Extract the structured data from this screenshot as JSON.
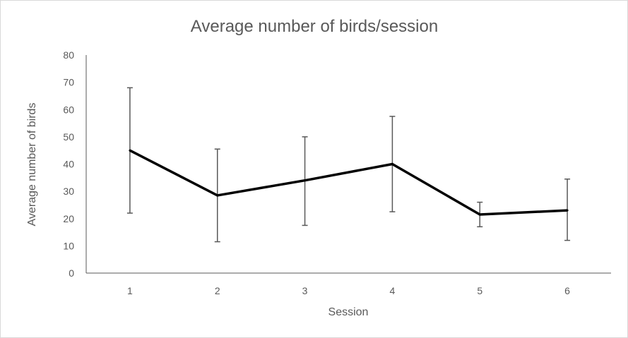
{
  "chart_data": {
    "type": "line",
    "title": "Average number of birds/session",
    "xlabel": "Session",
    "ylabel": "Average number of birds",
    "categories": [
      "1",
      "2",
      "3",
      "4",
      "5",
      "6"
    ],
    "y_ticks": [
      "0",
      "10",
      "20",
      "30",
      "40",
      "50",
      "60",
      "70",
      "80"
    ],
    "ylim": [
      0,
      80
    ],
    "grid": false,
    "legend": "none",
    "series": [
      {
        "values": [
          45,
          28.5,
          34,
          40,
          21.5,
          23
        ],
        "error_low": [
          22,
          11.5,
          17.5,
          22.5,
          17,
          12
        ],
        "error_high": [
          68,
          45.5,
          50,
          57.5,
          26,
          34.5
        ],
        "color": "#000000"
      }
    ],
    "error_bar_color": "#595959",
    "axis_color": "#595959"
  }
}
